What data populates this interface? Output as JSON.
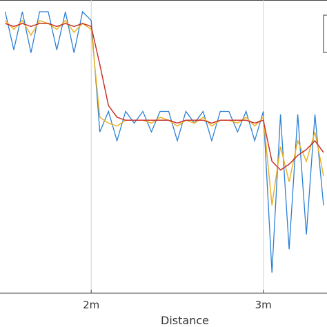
{
  "chart_data": {
    "type": "line",
    "x_label": "Distance",
    "x": [
      1.5,
      1.55,
      1.6,
      1.65,
      1.7,
      1.75,
      1.8,
      1.85,
      1.9,
      1.95,
      2.0,
      2.05,
      2.1,
      2.15,
      2.2,
      2.25,
      2.3,
      2.35,
      2.4,
      2.45,
      2.5,
      2.55,
      2.6,
      2.65,
      2.7,
      2.75,
      2.8,
      2.85,
      2.9,
      2.95,
      3.0,
      3.05,
      3.1,
      3.15,
      3.2,
      3.25,
      3.3,
      3.35
    ],
    "series": [
      {
        "color": "#2a7fd4",
        "values": [
          0.96,
          0.83,
          0.96,
          0.82,
          0.96,
          0.96,
          0.83,
          0.96,
          0.82,
          0.96,
          0.93,
          0.55,
          0.62,
          0.52,
          0.62,
          0.58,
          0.62,
          0.55,
          0.62,
          0.62,
          0.52,
          0.62,
          0.58,
          0.62,
          0.52,
          0.62,
          0.62,
          0.55,
          0.62,
          0.52,
          0.62,
          0.07,
          0.61,
          0.15,
          0.61,
          0.2,
          0.61,
          0.3
        ]
      },
      {
        "color": "#edb120",
        "values": [
          0.93,
          0.9,
          0.93,
          0.88,
          0.93,
          0.92,
          0.9,
          0.93,
          0.89,
          0.92,
          0.9,
          0.6,
          0.58,
          0.57,
          0.59,
          0.59,
          0.59,
          0.58,
          0.6,
          0.59,
          0.57,
          0.59,
          0.58,
          0.6,
          0.57,
          0.59,
          0.59,
          0.58,
          0.6,
          0.57,
          0.6,
          0.3,
          0.5,
          0.38,
          0.52,
          0.45,
          0.55,
          0.4
        ]
      },
      {
        "color": "#c8322a",
        "values": [
          0.92,
          0.91,
          0.92,
          0.91,
          0.92,
          0.92,
          0.91,
          0.92,
          0.91,
          0.92,
          0.91,
          0.78,
          0.64,
          0.6,
          0.59,
          0.59,
          0.59,
          0.59,
          0.59,
          0.59,
          0.58,
          0.59,
          0.59,
          0.59,
          0.58,
          0.59,
          0.59,
          0.59,
          0.59,
          0.58,
          0.59,
          0.45,
          0.42,
          0.44,
          0.47,
          0.49,
          0.52,
          0.48
        ]
      }
    ],
    "xlim": [
      1.47,
      3.37
    ],
    "ylim": [
      0,
      1
    ],
    "xticks": [
      {
        "value": 2,
        "label": "2m"
      },
      {
        "value": 3,
        "label": "3m"
      }
    ],
    "grid": true
  }
}
